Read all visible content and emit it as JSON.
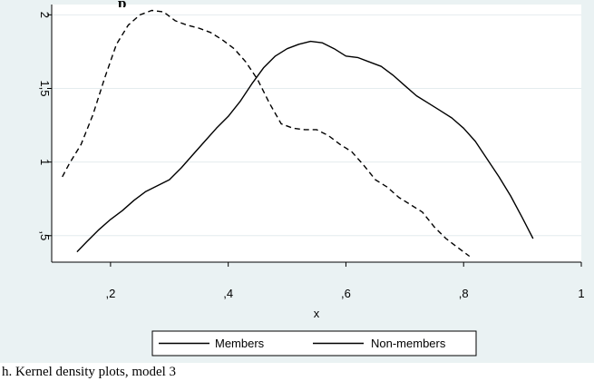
{
  "caption": "h. Kernel density plots, model 3",
  "title_fragment": "p",
  "chart_data": {
    "type": "line",
    "xlabel": "x",
    "ylabel": "",
    "xlim": [
      0.1,
      1.0
    ],
    "ylim": [
      0.32,
      2.07
    ],
    "x_ticks": [
      0.2,
      0.4,
      0.6,
      0.8,
      1.0
    ],
    "x_tick_labels": [
      ",2",
      ",4",
      ",6",
      ",8",
      "1"
    ],
    "y_ticks": [
      0.5,
      1.0,
      1.5,
      2.0
    ],
    "y_tick_labels": [
      ",5",
      "1",
      "1,5",
      "2"
    ],
    "grid": "horizontal",
    "legend_position": "bottom",
    "series": [
      {
        "name": "Members",
        "style": "solid",
        "x": [
          0.143,
          0.16,
          0.18,
          0.2,
          0.22,
          0.24,
          0.26,
          0.28,
          0.3,
          0.32,
          0.34,
          0.36,
          0.38,
          0.4,
          0.42,
          0.44,
          0.46,
          0.48,
          0.5,
          0.52,
          0.54,
          0.56,
          0.58,
          0.6,
          0.62,
          0.64,
          0.66,
          0.68,
          0.7,
          0.72,
          0.74,
          0.76,
          0.78,
          0.8,
          0.82,
          0.84,
          0.86,
          0.88,
          0.9,
          0.918
        ],
        "y": [
          0.39,
          0.46,
          0.54,
          0.61,
          0.67,
          0.74,
          0.8,
          0.84,
          0.88,
          0.96,
          1.05,
          1.14,
          1.23,
          1.31,
          1.41,
          1.53,
          1.64,
          1.72,
          1.77,
          1.8,
          1.82,
          1.81,
          1.77,
          1.72,
          1.71,
          1.68,
          1.65,
          1.59,
          1.52,
          1.45,
          1.4,
          1.35,
          1.3,
          1.23,
          1.14,
          1.02,
          0.9,
          0.77,
          0.62,
          0.48
        ]
      },
      {
        "name": "Non-members",
        "style": "dashed",
        "x": [
          0.118,
          0.13,
          0.15,
          0.17,
          0.19,
          0.21,
          0.23,
          0.25,
          0.27,
          0.29,
          0.31,
          0.33,
          0.35,
          0.37,
          0.39,
          0.41,
          0.43,
          0.45,
          0.47,
          0.49,
          0.51,
          0.53,
          0.55,
          0.57,
          0.59,
          0.61,
          0.63,
          0.65,
          0.67,
          0.69,
          0.71,
          0.73,
          0.75,
          0.77,
          0.79,
          0.81
        ],
        "y": [
          0.9,
          0.99,
          1.12,
          1.32,
          1.57,
          1.8,
          1.93,
          2.0,
          2.03,
          2.02,
          1.96,
          1.93,
          1.91,
          1.88,
          1.83,
          1.77,
          1.68,
          1.56,
          1.4,
          1.26,
          1.23,
          1.22,
          1.22,
          1.18,
          1.12,
          1.07,
          0.98,
          0.88,
          0.83,
          0.76,
          0.71,
          0.66,
          0.56,
          0.48,
          0.42,
          0.36
        ]
      }
    ]
  }
}
